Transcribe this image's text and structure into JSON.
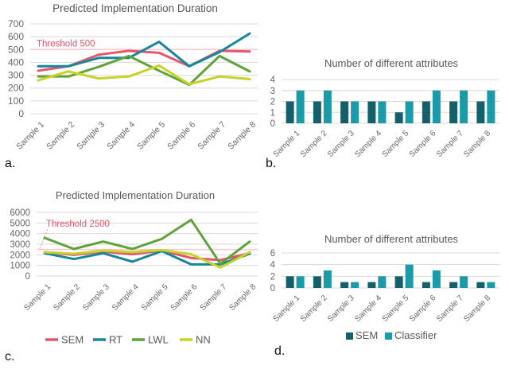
{
  "panels": [
    {
      "id": "a",
      "label": "a."
    },
    {
      "id": "b",
      "label": "b."
    },
    {
      "id": "c",
      "label": "c."
    },
    {
      "id": "d",
      "label": "d."
    }
  ],
  "colors": {
    "sem_line": "#e5566d",
    "rt_line": "#17879b",
    "lwl_line": "#5fa33a",
    "nn_line": "#c8d22b",
    "sem_bar": "#14606a",
    "classifier_bar": "#1b9aa8",
    "threshold_line": "#f7c6ce",
    "threshold_text": "#e0556a",
    "grid": "#d8d8d8",
    "title_text": "#595959",
    "axis_text": "#666666"
  },
  "chart_data": [
    {
      "id": "a",
      "type": "line",
      "title": "Predicted Implementation Duration",
      "categories": [
        "Sample 1",
        "Sample 2",
        "Sample 3",
        "Sample 4",
        "Sample 5",
        "Sample 6",
        "Sample 7",
        "Sample 8"
      ],
      "series": [
        {
          "name": "SEM",
          "color": "#e5566d",
          "values": [
            335,
            370,
            460,
            490,
            475,
            370,
            490,
            485
          ]
        },
        {
          "name": "RT",
          "color": "#17879b",
          "values": [
            370,
            370,
            435,
            435,
            560,
            370,
            480,
            625
          ]
        },
        {
          "name": "LWL",
          "color": "#5fa33a",
          "values": [
            290,
            290,
            365,
            450,
            335,
            225,
            450,
            330
          ]
        },
        {
          "name": "NN",
          "color": "#c8d22b",
          "values": [
            260,
            330,
            275,
            290,
            375,
            230,
            290,
            270
          ]
        }
      ],
      "threshold": {
        "value": 500,
        "label": "Threshold 500",
        "pointer": false
      },
      "ylim": [
        0,
        700
      ],
      "yticks": [
        0,
        100,
        200,
        300,
        400,
        500,
        600,
        700
      ],
      "grid": true,
      "legend_position": "none"
    },
    {
      "id": "b",
      "type": "bar",
      "title": "Number of different attributes",
      "categories": [
        "Sample 1",
        "Sample 2",
        "Sample 3",
        "Sample 4",
        "Sample 5",
        "Sample 6",
        "Sample 7",
        "Sample 8"
      ],
      "series": [
        {
          "name": "SEM",
          "color": "#14606a",
          "values": [
            2,
            2,
            2,
            2,
            1,
            2,
            2,
            2
          ]
        },
        {
          "name": "Classifier",
          "color": "#1b9aa8",
          "values": [
            3,
            3,
            2,
            2,
            2,
            3,
            3,
            3
          ]
        }
      ],
      "ylim": [
        0,
        4
      ],
      "yticks": [
        0,
        1,
        2,
        3,
        4
      ],
      "grid": true,
      "legend_position": "none"
    },
    {
      "id": "c",
      "type": "line",
      "title": "Predicted Implementation Duration",
      "categories": [
        "Sample 1",
        "Sample 2",
        "Sample 3",
        "Sample 4",
        "Sample 5",
        "Sample 6",
        "Sample 7",
        "Sample 8"
      ],
      "series": [
        {
          "name": "SEM",
          "color": "#e5566d",
          "values": [
            2250,
            2000,
            2300,
            2050,
            2400,
            1700,
            1500,
            2150
          ]
        },
        {
          "name": "RT",
          "color": "#17879b",
          "values": [
            2150,
            1600,
            2150,
            1350,
            2350,
            1100,
            1100,
            2100
          ]
        },
        {
          "name": "LWL",
          "color": "#5fa33a",
          "values": [
            3600,
            2550,
            3250,
            2550,
            3500,
            5300,
            1150,
            3250
          ]
        },
        {
          "name": "NN",
          "color": "#c8d22b",
          "values": [
            2250,
            2100,
            2400,
            2250,
            2450,
            2050,
            800,
            2250
          ]
        }
      ],
      "threshold": {
        "value": 2500,
        "label": "Threshold 2500",
        "pointer": true
      },
      "ylim": [
        0,
        6000
      ],
      "yticks": [
        0,
        1000,
        2000,
        3000,
        4000,
        5000,
        6000
      ],
      "grid": true,
      "legend_position": "bottom"
    },
    {
      "id": "d",
      "type": "bar",
      "title": "Number of different attributes",
      "categories": [
        "Sample 1",
        "Sample 2",
        "Sample 3",
        "Sample 4",
        "Sample 5",
        "Sample 6",
        "Sample 7",
        "Sample 8"
      ],
      "series": [
        {
          "name": "SEM",
          "color": "#14606a",
          "values": [
            2,
            2,
            1,
            1,
            2,
            1,
            1,
            1
          ]
        },
        {
          "name": "Classifier",
          "color": "#1b9aa8",
          "values": [
            2,
            3,
            1,
            2,
            4,
            3,
            2,
            1
          ]
        }
      ],
      "ylim": [
        0,
        6
      ],
      "yticks": [
        0,
        2,
        4,
        6
      ],
      "grid": true,
      "legend_position": "bottom"
    }
  ]
}
